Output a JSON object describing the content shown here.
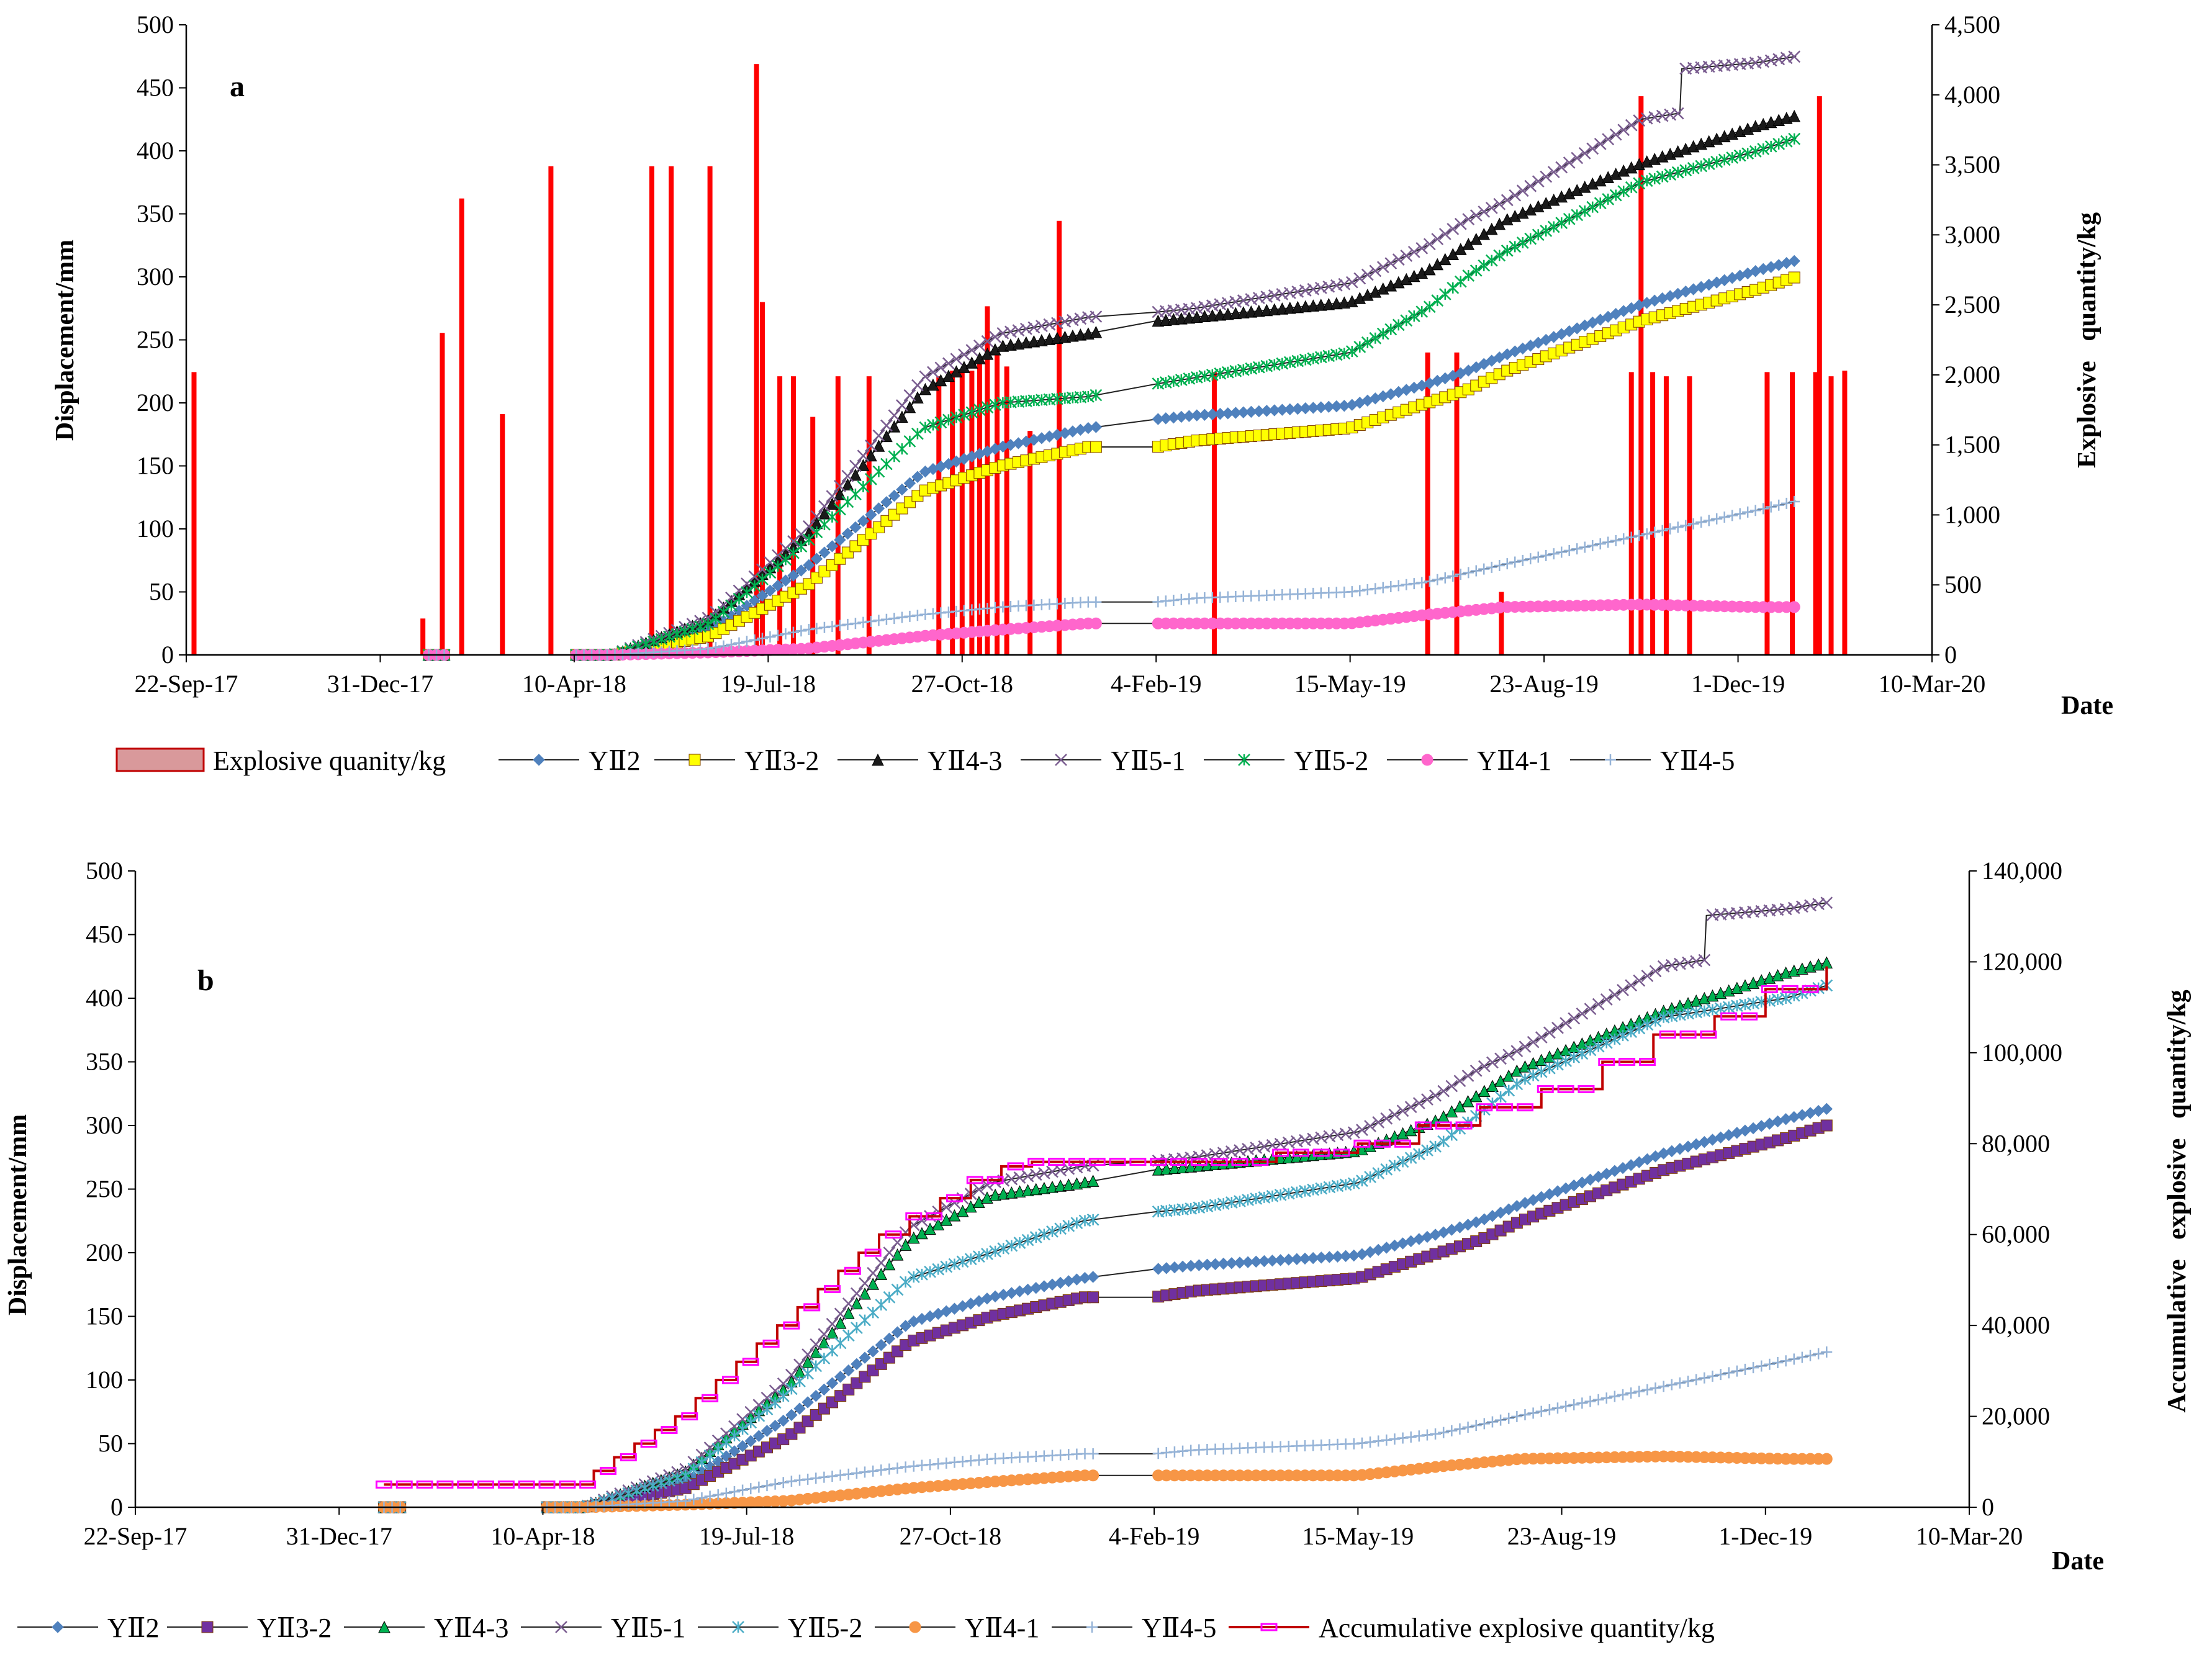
{
  "chart_data": [
    {
      "panel": "a",
      "type": "line+bar",
      "xlabel": "Date",
      "ylabel": "Displacement/mm",
      "y2label": "Explosive   quantity/kg",
      "x_ticks": [
        "22-Sep-17",
        "31-Dec-17",
        "10-Apr-18",
        "19-Jul-18",
        "27-Oct-18",
        "4-Feb-19",
        "15-May-19",
        "23-Aug-19",
        "1-Dec-19",
        "10-Mar-20"
      ],
      "xlim_days": [
        0,
        900
      ],
      "ylim": [
        0,
        500
      ],
      "y_ticks": [
        "0",
        "50",
        "100",
        "150",
        "200",
        "250",
        "300",
        "350",
        "400",
        "450",
        "500"
      ],
      "y2lim": [
        0,
        4500
      ],
      "y2_ticks": [
        "0",
        "500",
        "1,000",
        "1,500",
        "2,000",
        "2,500",
        "3,000",
        "3,500",
        "4,000",
        "4,500"
      ],
      "bars": {
        "name": "Explosive quanity/kg",
        "color": "#ff0000",
        "day": [
          4,
          122,
          132,
          142,
          163,
          188,
          240,
          250,
          270,
          294,
          297,
          306,
          313,
          323,
          336,
          352,
          388,
          395,
          400,
          405,
          409,
          413,
          418,
          423,
          435,
          450,
          530,
          640,
          655,
          678,
          745,
          750,
          756,
          763,
          775,
          815,
          828,
          840,
          842,
          848,
          855
        ],
        "kg": [
          2020,
          260,
          2300,
          3260,
          1720,
          3490,
          3490,
          3490,
          3490,
          4220,
          2520,
          1990,
          1990,
          1700,
          1990,
          1990,
          1990,
          2030,
          2030,
          2030,
          2100,
          2490,
          2160,
          2060,
          1600,
          3100,
          2020,
          2160,
          2160,
          450,
          2020,
          3990,
          2020,
          1990,
          1990,
          2020,
          2020,
          2020,
          3990,
          1990,
          2030
        ]
      },
      "series": [
        {
          "name": "YⅡ2",
          "color": "#4f81bd",
          "marker": "diamond",
          "days": [
            125,
            200,
            220,
            270,
            320,
            380,
            420,
            465,
            500,
            520,
            600,
            640,
            660,
            680,
            750,
            810,
            830
          ],
          "values": [
            0,
            0,
            0,
            20,
            70,
            145,
            165,
            180,
            187,
            190,
            198,
            215,
            225,
            238,
            278,
            305,
            313
          ]
        },
        {
          "name": "YⅡ3-2",
          "color": "#ffff00",
          "marker": "square",
          "days": [
            125,
            200,
            220,
            270,
            320,
            380,
            420,
            465,
            500,
            520,
            600,
            640,
            660,
            680,
            750,
            810,
            830
          ],
          "values": [
            0,
            0,
            0,
            15,
            55,
            130,
            150,
            165,
            165,
            170,
            180,
            200,
            210,
            225,
            265,
            290,
            300
          ]
        },
        {
          "name": "YⅡ4-3",
          "color": "#1a1a1a",
          "marker": "triangle",
          "days": [
            125,
            200,
            220,
            270,
            320,
            380,
            420,
            465,
            500,
            520,
            600,
            640,
            660,
            680,
            750,
            810,
            830
          ],
          "values": [
            0,
            0,
            0,
            28,
            95,
            210,
            245,
            255,
            265,
            268,
            280,
            305,
            325,
            345,
            390,
            420,
            428
          ]
        },
        {
          "name": "YⅡ5-1",
          "color": "#7a5d90",
          "marker": "x",
          "days": [
            125,
            200,
            220,
            270,
            320,
            380,
            420,
            465,
            500,
            520,
            600,
            640,
            660,
            680,
            750,
            770,
            771,
            810,
            830
          ],
          "values": [
            0,
            0,
            0,
            30,
            100,
            220,
            255,
            268,
            272,
            275,
            295,
            325,
            345,
            360,
            425,
            430,
            465,
            470,
            475
          ]
        },
        {
          "name": "YⅡ5-2",
          "color": "#00b050",
          "marker": "star",
          "days": [
            125,
            200,
            220,
            270,
            320,
            380,
            420,
            465,
            500,
            520,
            600,
            640,
            660,
            680,
            750,
            810,
            830
          ],
          "values": [
            0,
            0,
            0,
            25,
            90,
            180,
            200,
            205,
            215,
            220,
            240,
            275,
            300,
            320,
            375,
            400,
            410
          ]
        },
        {
          "name": "YⅡ4-1",
          "color": "#ff66cc",
          "marker": "circle",
          "days": [
            125,
            200,
            220,
            270,
            320,
            380,
            420,
            465,
            500,
            520,
            600,
            640,
            660,
            680,
            750,
            810,
            830
          ],
          "values": [
            0,
            0,
            0,
            2,
            5,
            15,
            20,
            25,
            25,
            25,
            25,
            32,
            35,
            38,
            40,
            38,
            38
          ]
        },
        {
          "name": "YⅡ4-5",
          "color": "#95b3d7",
          "marker": "plus",
          "days": [
            125,
            200,
            220,
            270,
            320,
            380,
            420,
            465,
            500,
            520,
            600,
            640,
            660,
            680,
            750,
            810,
            830
          ],
          "values": [
            0,
            0,
            0,
            5,
            20,
            32,
            38,
            42,
            42,
            45,
            50,
            58,
            65,
            72,
            95,
            115,
            122
          ]
        }
      ]
    },
    {
      "panel": "b",
      "type": "line",
      "xlabel": "Date",
      "ylabel": "Displacement/mm",
      "y2label": "Accumulative   explosive   quantity/kg",
      "x_ticks": [
        "22-Sep-17",
        "31-Dec-17",
        "10-Apr-18",
        "19-Jul-18",
        "27-Oct-18",
        "4-Feb-19",
        "15-May-19",
        "23-Aug-19",
        "1-Dec-19",
        "10-Mar-20"
      ],
      "xlim_days": [
        0,
        900
      ],
      "ylim": [
        0,
        500
      ],
      "y_ticks": [
        "0",
        "50",
        "100",
        "150",
        "200",
        "250",
        "300",
        "350",
        "400",
        "450",
        "500"
      ],
      "y2lim": [
        0,
        140000
      ],
      "y2_ticks": [
        "0",
        "20,000",
        "40,000",
        "60,000",
        "80,000",
        "100,000",
        "120,000",
        "140,000"
      ],
      "series": [
        {
          "name": "YⅡ2",
          "color": "#4f81bd",
          "marker": "diamond",
          "days": [
            122,
            200,
            220,
            270,
            320,
            380,
            420,
            465,
            500,
            520,
            600,
            640,
            660,
            680,
            750,
            810,
            830
          ],
          "values": [
            0,
            0,
            0,
            20,
            70,
            145,
            165,
            180,
            187,
            190,
            198,
            215,
            225,
            238,
            278,
            305,
            313
          ]
        },
        {
          "name": "YⅡ3-2",
          "color": "#7030a0",
          "marker": "square",
          "days": [
            122,
            200,
            220,
            270,
            320,
            380,
            420,
            465,
            500,
            520,
            600,
            640,
            660,
            680,
            750,
            810,
            830
          ],
          "values": [
            0,
            0,
            0,
            15,
            55,
            130,
            150,
            165,
            165,
            170,
            180,
            200,
            210,
            225,
            265,
            290,
            300
          ]
        },
        {
          "name": "YⅡ4-3",
          "color": "#00b050",
          "marker": "triangle",
          "days": [
            122,
            200,
            220,
            270,
            320,
            380,
            420,
            465,
            500,
            520,
            600,
            640,
            660,
            680,
            750,
            810,
            830
          ],
          "values": [
            0,
            0,
            0,
            28,
            95,
            210,
            245,
            255,
            265,
            268,
            280,
            305,
            325,
            345,
            390,
            420,
            428
          ]
        },
        {
          "name": "YⅡ5-1",
          "color": "#7a5d90",
          "marker": "x",
          "days": [
            122,
            200,
            220,
            270,
            320,
            380,
            420,
            465,
            500,
            520,
            600,
            640,
            660,
            680,
            750,
            770,
            771,
            810,
            830
          ],
          "values": [
            0,
            0,
            0,
            30,
            100,
            220,
            255,
            268,
            272,
            275,
            295,
            325,
            345,
            360,
            425,
            430,
            465,
            470,
            475
          ]
        },
        {
          "name": "YⅡ5-2",
          "color": "#4bacc6",
          "marker": "star",
          "days": [
            122,
            200,
            220,
            270,
            320,
            380,
            420,
            465,
            500,
            520,
            600,
            640,
            660,
            680,
            750,
            810,
            830
          ],
          "values": [
            0,
            0,
            0,
            25,
            90,
            180,
            200,
            225,
            232,
            235,
            255,
            285,
            310,
            335,
            385,
            400,
            410
          ]
        },
        {
          "name": "YⅡ4-1",
          "color": "#f79646",
          "marker": "circle",
          "days": [
            122,
            200,
            220,
            270,
            320,
            380,
            420,
            465,
            500,
            520,
            600,
            640,
            660,
            680,
            750,
            810,
            830
          ],
          "values": [
            0,
            0,
            0,
            2,
            5,
            15,
            20,
            25,
            25,
            25,
            25,
            32,
            35,
            38,
            40,
            38,
            38
          ]
        },
        {
          "name": "YⅡ4-5",
          "color": "#95b3d7",
          "marker": "plus",
          "days": [
            122,
            200,
            220,
            270,
            320,
            380,
            420,
            465,
            500,
            520,
            600,
            640,
            660,
            680,
            750,
            810,
            830
          ],
          "values": [
            0,
            0,
            0,
            5,
            20,
            32,
            38,
            42,
            42,
            45,
            50,
            58,
            65,
            72,
            95,
            115,
            122
          ]
        },
        {
          "name": "Accumulative explosive quantity/kg",
          "color": "#c00000",
          "marker_color": "#ff00ff",
          "axis": "y2",
          "step": true,
          "days": [
            122,
            210,
            225,
            235,
            245,
            255,
            265,
            275,
            285,
            295,
            305,
            315,
            325,
            335,
            345,
            355,
            365,
            380,
            395,
            410,
            425,
            440,
            460,
            520,
            560,
            600,
            630,
            660,
            690,
            720,
            745,
            775,
            800,
            830
          ],
          "values": [
            5000,
            5000,
            8000,
            11000,
            14000,
            17000,
            20000,
            24000,
            28000,
            32000,
            36000,
            40000,
            44000,
            48000,
            52000,
            56000,
            60000,
            64000,
            68000,
            72000,
            75000,
            76000,
            76000,
            76000,
            78000,
            80000,
            84000,
            88000,
            92000,
            98000,
            104000,
            108000,
            114000,
            119000
          ]
        }
      ]
    }
  ],
  "legends": {
    "a": [
      "Explosive quanity/kg",
      "YⅡ2",
      "YⅡ3-2",
      "YⅡ4-3",
      "YⅡ5-1",
      "YⅡ5-2",
      "YⅡ4-1",
      "YⅡ4-5"
    ],
    "b": [
      "YⅡ2",
      "YⅡ3-2",
      "YⅡ4-3",
      "YⅡ5-1",
      "YⅡ5-2",
      "YⅡ4-1",
      "YⅡ4-5",
      "Accumulative explosive quantity/kg"
    ]
  }
}
